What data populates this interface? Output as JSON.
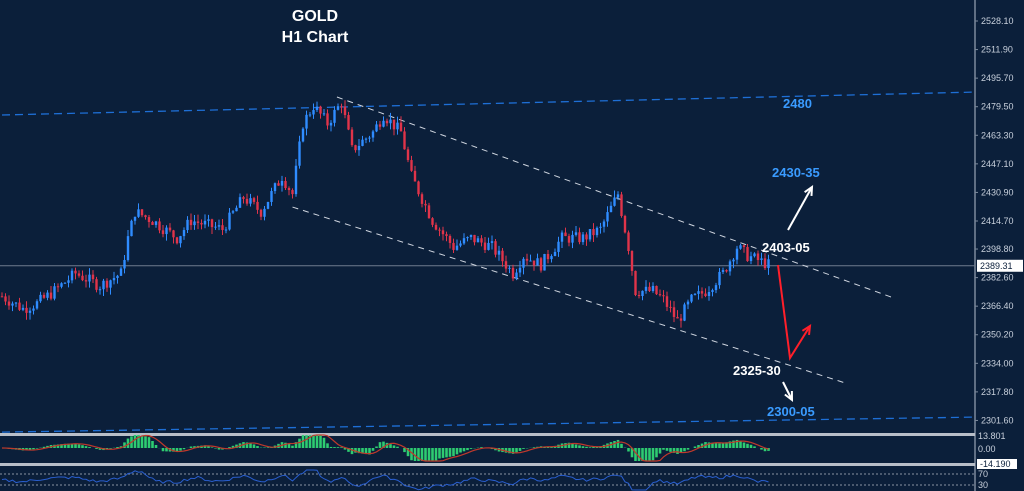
{
  "chart_data": {
    "type": "candlestick",
    "title": "GOLD",
    "subtitle": "H1 Chart",
    "ylim": [
      2295,
      2535
    ],
    "y_ticks": [
      "2528.10",
      "2511.90",
      "2495.70",
      "2479.50",
      "2463.30",
      "2447.10",
      "2430.90",
      "2414.70",
      "2398.80",
      "2382.60",
      "2366.40",
      "2350.20",
      "2334.00",
      "2317.80",
      "2301.60"
    ],
    "current_price": "2389.31",
    "bull_color": "#2f8cff",
    "bear_color": "#e0344a",
    "price_path": [
      [
        0,
        2372
      ],
      [
        6,
        2365
      ],
      [
        10,
        2368
      ],
      [
        15,
        2375
      ],
      [
        21,
        2385
      ],
      [
        28,
        2378
      ],
      [
        34,
        2385
      ],
      [
        36,
        2405
      ],
      [
        38,
        2420
      ],
      [
        43,
        2415
      ],
      [
        50,
        2405
      ],
      [
        54,
        2415
      ],
      [
        63,
        2410
      ],
      [
        69,
        2428
      ],
      [
        74,
        2420
      ],
      [
        80,
        2440
      ],
      [
        83,
        2430
      ],
      [
        86,
        2470
      ],
      [
        89,
        2480
      ],
      [
        93,
        2470
      ],
      [
        97,
        2482
      ],
      [
        100,
        2455
      ],
      [
        106,
        2465
      ],
      [
        109,
        2475
      ],
      [
        114,
        2465
      ],
      [
        117,
        2440
      ],
      [
        123,
        2415
      ],
      [
        129,
        2400
      ],
      [
        134,
        2405
      ],
      [
        140,
        2400
      ],
      [
        146,
        2385
      ],
      [
        149,
        2395
      ],
      [
        154,
        2390
      ],
      [
        160,
        2405
      ],
      [
        166,
        2405
      ],
      [
        171,
        2410
      ],
      [
        176,
        2430
      ],
      [
        179,
        2400
      ],
      [
        181,
        2375
      ],
      [
        186,
        2375
      ],
      [
        189,
        2370
      ],
      [
        193,
        2358
      ],
      [
        197,
        2370
      ],
      [
        201,
        2375
      ],
      [
        206,
        2385
      ],
      [
        210,
        2400
      ],
      [
        213,
        2395
      ],
      [
        219,
        2390
      ]
    ],
    "lines": [
      {
        "kind": "resistance",
        "style": "blue-dashed",
        "from": [
          0,
          2474.8
        ],
        "to": [
          279,
          2487.8
        ]
      },
      {
        "kind": "support",
        "style": "blue-dashed",
        "from": [
          0,
          2295
        ],
        "to": [
          279,
          2303.5
        ]
      },
      {
        "kind": "channel-upper",
        "style": "white-dashed",
        "from": [
          95.7,
          2485
        ],
        "to": [
          254,
          2371.6
        ]
      },
      {
        "kind": "channel-lower",
        "style": "white-dashed",
        "from": [
          83,
          2422.6
        ],
        "to": [
          241,
          2322.8
        ]
      }
    ],
    "annotations": [
      {
        "text": "2480",
        "color": "#3a9bff"
      },
      {
        "text": "2430-35",
        "color": "#3a9bff"
      },
      {
        "text": "2403-05",
        "color": "#ffffff"
      },
      {
        "text": "2325-30",
        "color": "#ffffff"
      },
      {
        "text": "2300-05",
        "color": "#3a9bff"
      }
    ],
    "macd": {
      "labels": [
        "13.801",
        "0.00",
        "-14.190"
      ],
      "hist_color": "#2ecc71",
      "signal_color": "#c0392b"
    },
    "rsi": {
      "labels": [
        "70",
        "30"
      ],
      "line_color": "#2a5fd0"
    }
  }
}
